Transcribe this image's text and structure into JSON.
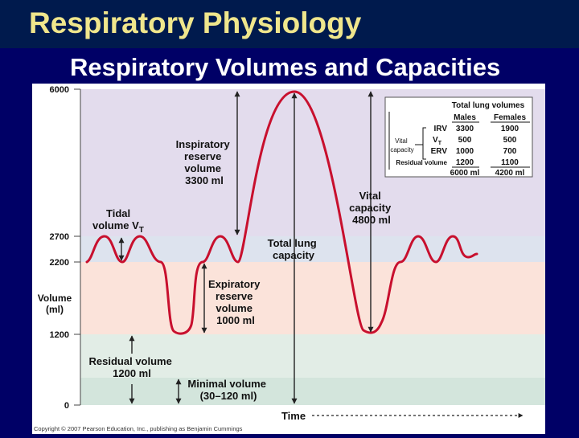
{
  "slide": {
    "title": "Respiratory Physiology",
    "subtitle": "Respiratory Volumes and Capacities"
  },
  "colors": {
    "slide_background": "#000066",
    "title_color": "#f0e68c",
    "trace_color": "#c8102e",
    "band_irv": "#e3dced",
    "band_vt": "#dde3ee",
    "band_erv": "#fbe3da",
    "band_rv": "#e2ede6",
    "band_min": "#d3e5dc"
  },
  "figure": {
    "y_axis": {
      "title_line1": "Volume",
      "title_line2": "(ml)",
      "ticks": [
        "6000",
        "2700",
        "2200",
        "1200",
        "0"
      ]
    },
    "x_axis": {
      "label": "Time"
    },
    "labels": {
      "irv": [
        "Inspiratory",
        "reserve",
        "volume",
        "3300 ml"
      ],
      "tidal": [
        "Tidal",
        "volume V",
        "T"
      ],
      "erv": [
        "Expiratory",
        "reserve",
        "volume",
        "1000 ml"
      ],
      "tlc": [
        "Total lung",
        "capacity"
      ],
      "vc": [
        "Vital",
        "capacity",
        "4800 ml"
      ],
      "rv": [
        "Residual volume",
        "1200 ml"
      ],
      "minimal": [
        "Minimal volume",
        "(30–120 ml)"
      ]
    },
    "copyright": "Copyright © 2007 Pearson Education, Inc., publishing as Benjamin Cummings"
  },
  "table": {
    "title": "Total lung volumes",
    "col_males": "Males",
    "col_females": "Females",
    "vital_capacity_label": [
      "Vital",
      "capacity"
    ],
    "rows": [
      {
        "label": "IRV",
        "males": "3300",
        "females": "1900"
      },
      {
        "label": "V",
        "sub": "T",
        "males": "500",
        "females": "500"
      },
      {
        "label": "ERV",
        "males": "1000",
        "females": "700"
      },
      {
        "label": "Residual volume",
        "males": "1200",
        "females": "1100"
      }
    ],
    "totals": {
      "males": "6000 ml",
      "females": "4200 ml"
    }
  }
}
